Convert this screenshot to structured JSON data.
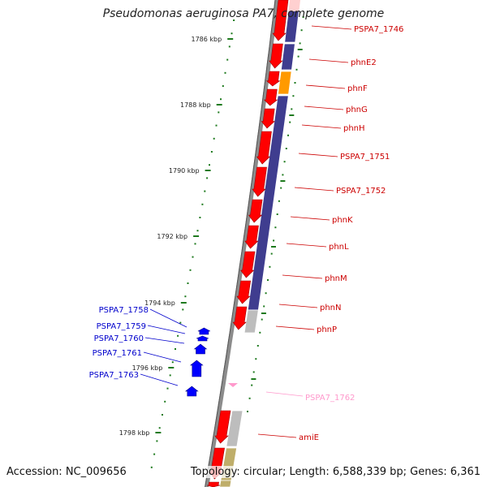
{
  "title": "Pseudomonas aeruginosa PA7, complete genome",
  "accession": "Accession: NC_009656",
  "topology": "Topology: circular; Length: 6,588,339 bp; Genes: 6,361",
  "colors": {
    "backbone": "#8c8c8c",
    "tick": "#1e7a1e",
    "forward_gene": "#ff0000",
    "reverse_gene": "#0000ff",
    "pseudo_gene": "#ff99cc",
    "gene_label_forward": "#cc0000",
    "gene_label_reverse": "#0000cc",
    "cog_purple": "#3f3d8f",
    "cog_orange": "#ff9a00",
    "cog_gray": "#bdbdbd",
    "cog_khaki": "#bfae6a",
    "cog_pink": "#ffd0d0"
  },
  "scale_labels": [
    "1786 kbp",
    "1788 kbp",
    "1790 kbp",
    "1792 kbp",
    "1794 kbp",
    "1796 kbp",
    "1798 kbp"
  ],
  "forward_gene_labels": [
    "PSPA7_1746",
    "phnE2",
    "phnF",
    "phnG",
    "phnH",
    "PSPA7_1751",
    "PSPA7_1752",
    "phnK",
    "phnL",
    "phnM",
    "phnN",
    "phnP",
    "amiE"
  ],
  "reverse_gene_labels": [
    "PSPA7_1758",
    "PSPA7_1759",
    "PSPA7_1760",
    "PSPA7_1761",
    "PSPA7_1763"
  ],
  "pseudo_gene_labels": [
    "PSPA7_1762"
  ]
}
